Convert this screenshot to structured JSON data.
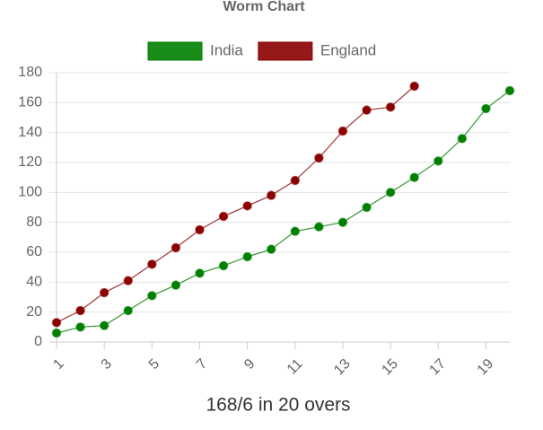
{
  "chart_data": {
    "type": "line",
    "title": "Worm Chart",
    "xlabel": "168/6 in 20 overs",
    "x": [
      1,
      2,
      3,
      4,
      5,
      6,
      7,
      8,
      9,
      10,
      11,
      12,
      13,
      14,
      15,
      16,
      17,
      18,
      19,
      20
    ],
    "xlim": [
      1,
      20
    ],
    "xticks": [
      1,
      3,
      5,
      7,
      9,
      11,
      13,
      15,
      17,
      19
    ],
    "ylim": [
      0,
      180
    ],
    "yticks": [
      0,
      20,
      40,
      60,
      80,
      100,
      120,
      140,
      160,
      180
    ],
    "grid": true,
    "legend": "top",
    "series": [
      {
        "name": "India",
        "color": "#008000",
        "values": [
          6,
          10,
          11,
          21,
          31,
          38,
          46,
          51,
          57,
          62,
          74,
          77,
          80,
          90,
          100,
          110,
          121,
          136,
          156,
          168
        ]
      },
      {
        "name": "England",
        "color": "#8b0000",
        "values": [
          13,
          21,
          33,
          41,
          52,
          63,
          75,
          84,
          91,
          98,
          108,
          123,
          141,
          155,
          157,
          171,
          null,
          null,
          null,
          null
        ]
      }
    ]
  }
}
